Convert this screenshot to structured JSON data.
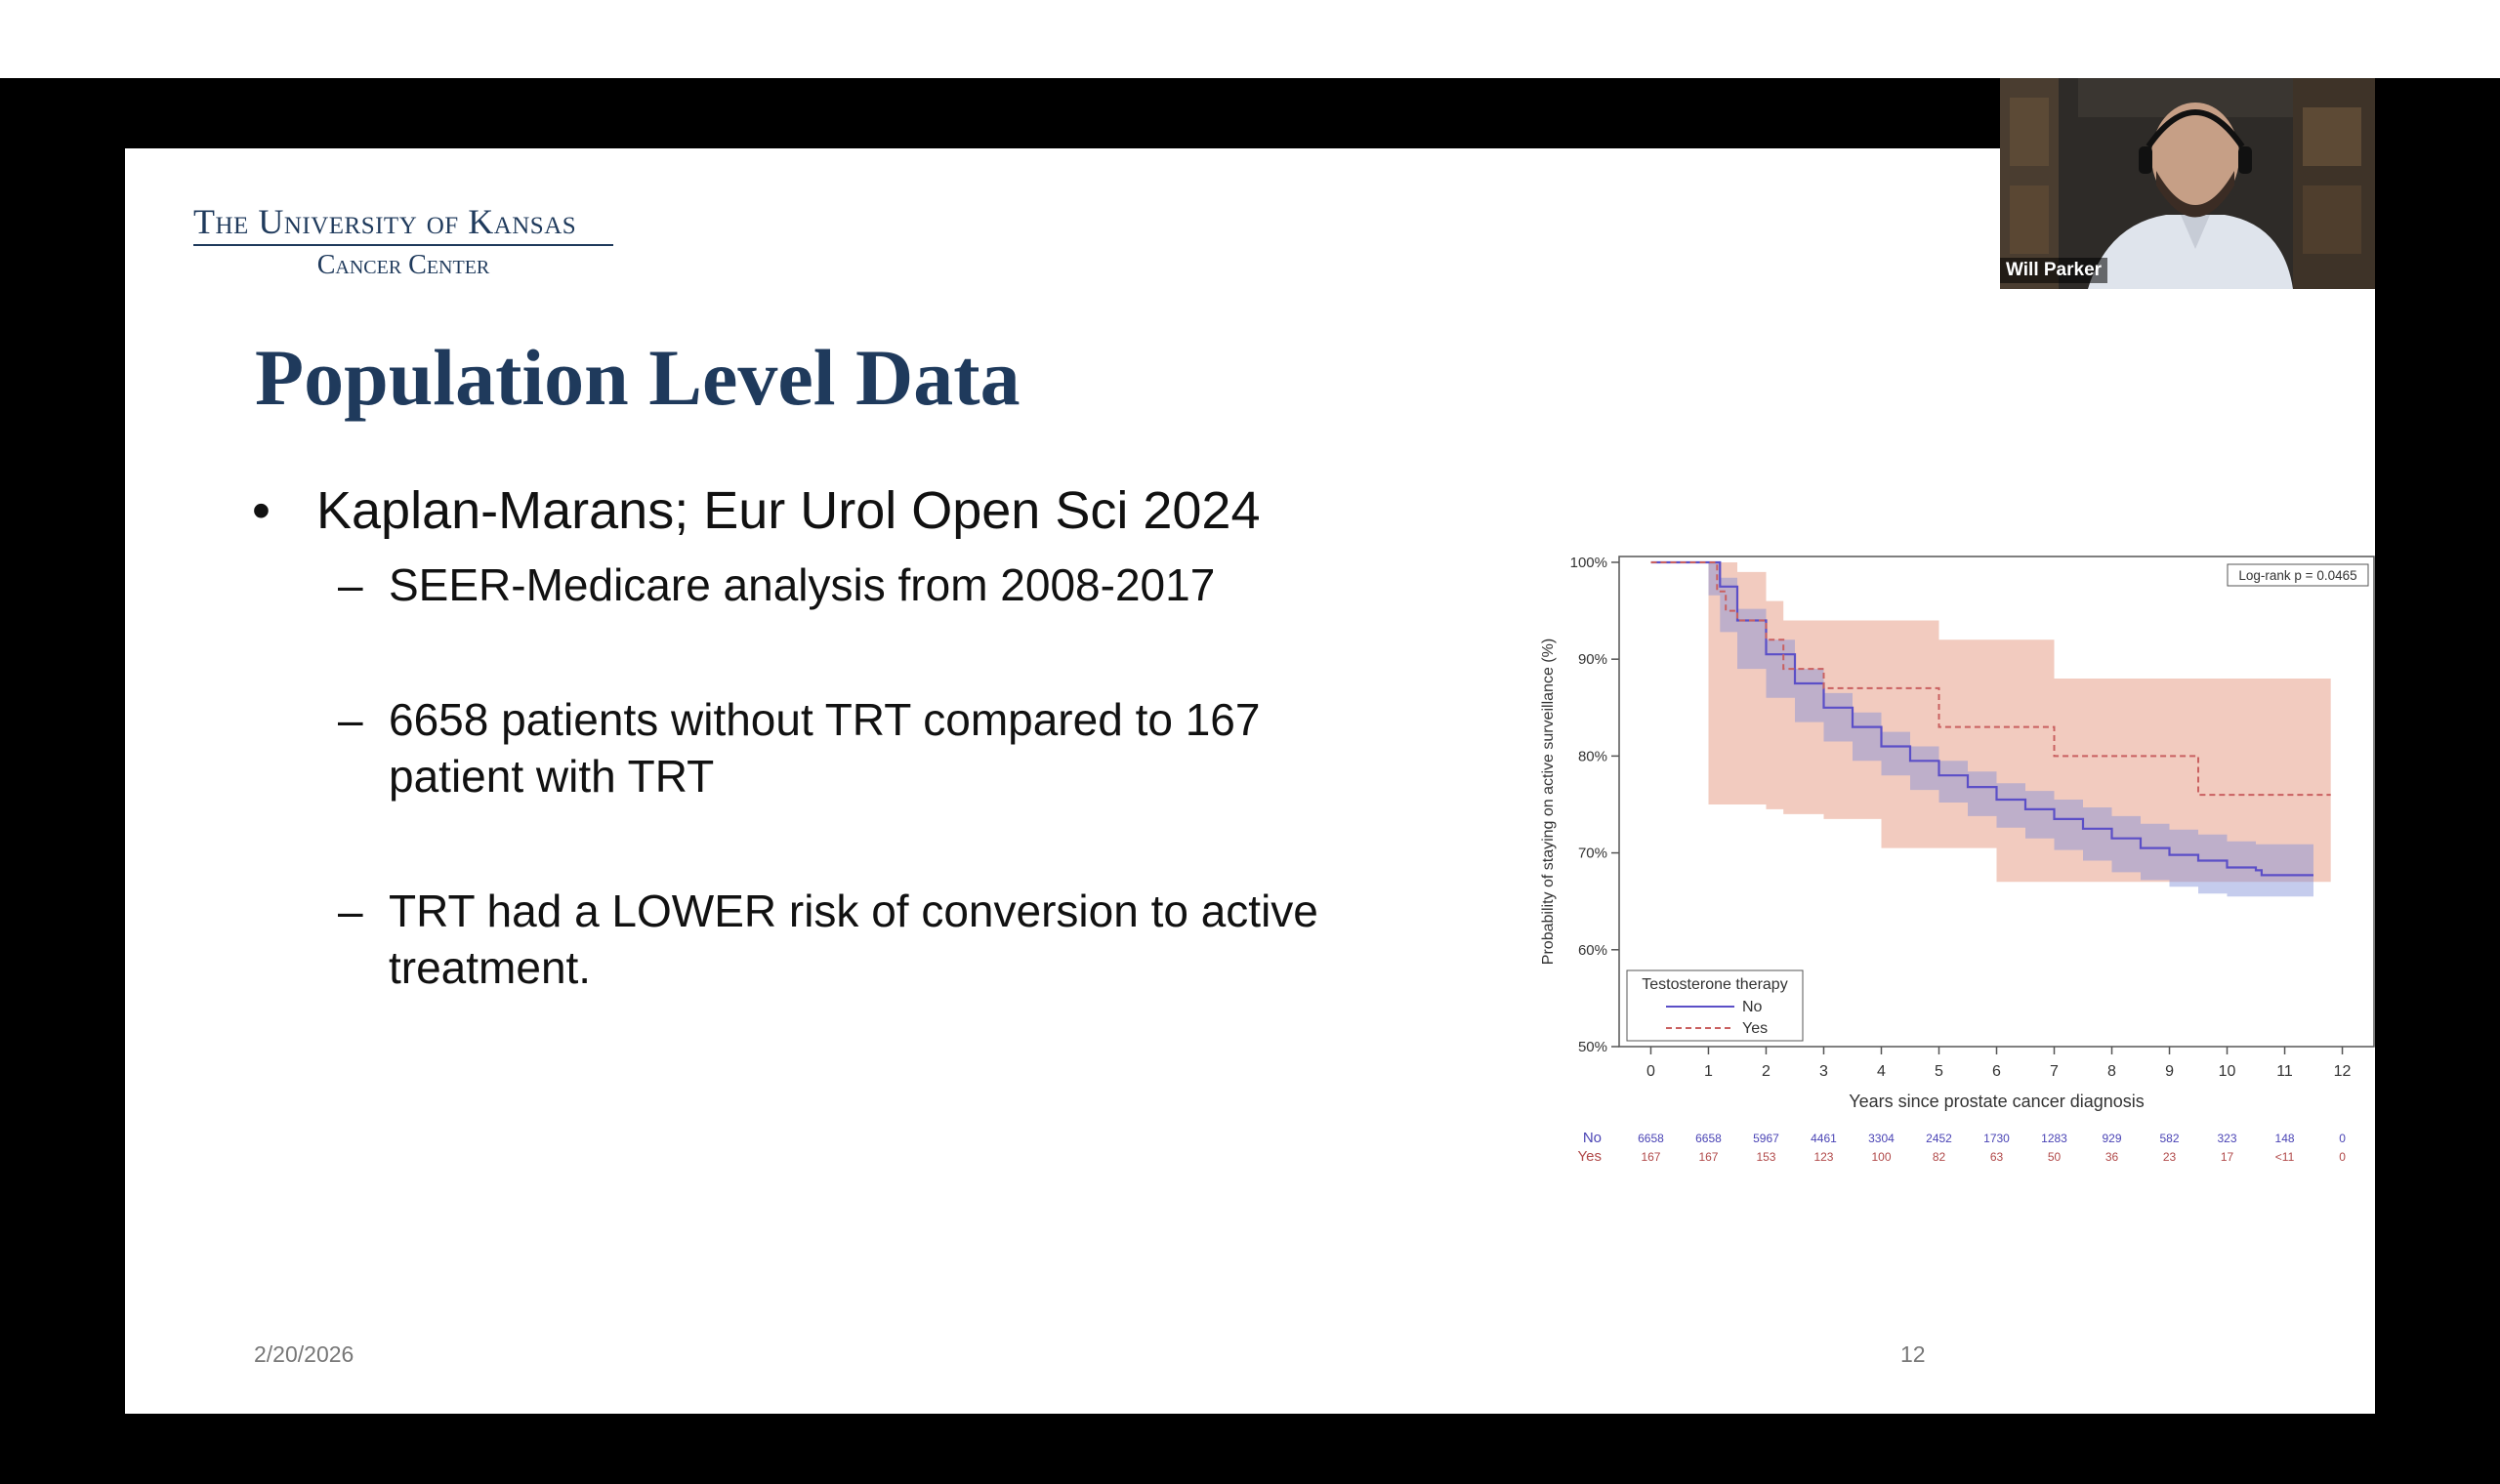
{
  "slide": {
    "logo_line1": "The University of Kansas",
    "logo_line2": "Cancer Center",
    "title": "Population Level Data",
    "bullet": "Kaplan-Marans; Eur Urol Open Sci 2024",
    "subbullets": [
      "SEER-Medicare analysis from 2008-2017",
      "6658 patients without TRT compared to 167 patient with TRT",
      "TRT had a LOWER risk of conversion to active treatment."
    ],
    "date": "2/20/2026",
    "page_number": "12"
  },
  "webcam": {
    "participant_name": "Will Parker"
  },
  "chart_data": {
    "type": "line",
    "xlabel": "Years since prostate cancer diagnosis",
    "ylabel": "Probability of staying on active surveillance (%)",
    "x_ticks": [
      0,
      1,
      2,
      3,
      4,
      5,
      6,
      7,
      8,
      9,
      10,
      11,
      12
    ],
    "y_ticks": [
      "50%",
      "60%",
      "70%",
      "80%",
      "90%",
      "100%"
    ],
    "xlim": [
      -0.55,
      12.55
    ],
    "ylim": [
      50,
      100.6
    ],
    "annotation": "Log-rank p = 0.0465",
    "legend": {
      "title": "Testosterone therapy",
      "placement": "bottom-left",
      "entries": [
        "No",
        "Yes"
      ]
    },
    "series": [
      {
        "name": "No",
        "color": "#5b4fc7",
        "style": "solid",
        "x": [
          0,
          1,
          1.2,
          1.5,
          2,
          2.5,
          3,
          3.5,
          4,
          4.5,
          5,
          5.5,
          6,
          6.5,
          7,
          7.5,
          8,
          8.5,
          9,
          9.5,
          10,
          10.5,
          10.6,
          11.5
        ],
        "y": [
          100,
          100,
          97.5,
          94,
          90.5,
          87.5,
          85,
          83,
          81,
          79.5,
          78,
          76.8,
          75.5,
          74.5,
          73.5,
          72.5,
          71.5,
          70.5,
          69.8,
          69.2,
          68.5,
          68.2,
          67.7,
          67.7
        ],
        "ci_lower": [
          100,
          100,
          96.6,
          92.8,
          89,
          86,
          83.5,
          81.5,
          79.5,
          78,
          76.5,
          75.2,
          73.8,
          72.6,
          71.5,
          70.3,
          69.2,
          68,
          67.2,
          66.5,
          65.8,
          65.5,
          65.5,
          65.5
        ],
        "ci_upper": [
          100,
          100,
          98.4,
          95.2,
          92,
          89,
          86.5,
          84.5,
          82.5,
          81,
          79.5,
          78.4,
          77.2,
          76.4,
          75.5,
          74.7,
          73.8,
          73,
          72.4,
          71.9,
          71.2,
          70.9,
          70.9,
          70.9
        ]
      },
      {
        "name": "Yes",
        "color": "#c96060",
        "style": "dashed",
        "x": [
          0,
          1,
          1.15,
          1.3,
          1.5,
          2,
          2.3,
          3,
          4,
          5,
          6,
          7,
          8,
          9,
          9.5,
          11.8
        ],
        "y": [
          100,
          100,
          97,
          95,
          94,
          92,
          89,
          87,
          87,
          83,
          83,
          80,
          80,
          80,
          76,
          76
        ],
        "ci_lower": [
          100,
          100,
          75,
          75,
          75,
          75,
          74.5,
          74,
          73.5,
          70.5,
          70.5,
          67,
          67,
          67,
          67,
          67
        ],
        "ci_upper": [
          100,
          100,
          100,
          100,
          99,
          96,
          94,
          94,
          94,
          92,
          92,
          88,
          88,
          88,
          88,
          88
        ]
      }
    ],
    "risk_table": {
      "labels": [
        "No",
        "Yes"
      ],
      "no": [
        "6658",
        "6658",
        "5967",
        "4461",
        "3304",
        "2452",
        "1730",
        "1283",
        "929",
        "582",
        "323",
        "148",
        "0"
      ],
      "yes": [
        "167",
        "167",
        "153",
        "123",
        "100",
        "82",
        "63",
        "50",
        "36",
        "23",
        "17",
        "<11",
        "0"
      ]
    }
  }
}
